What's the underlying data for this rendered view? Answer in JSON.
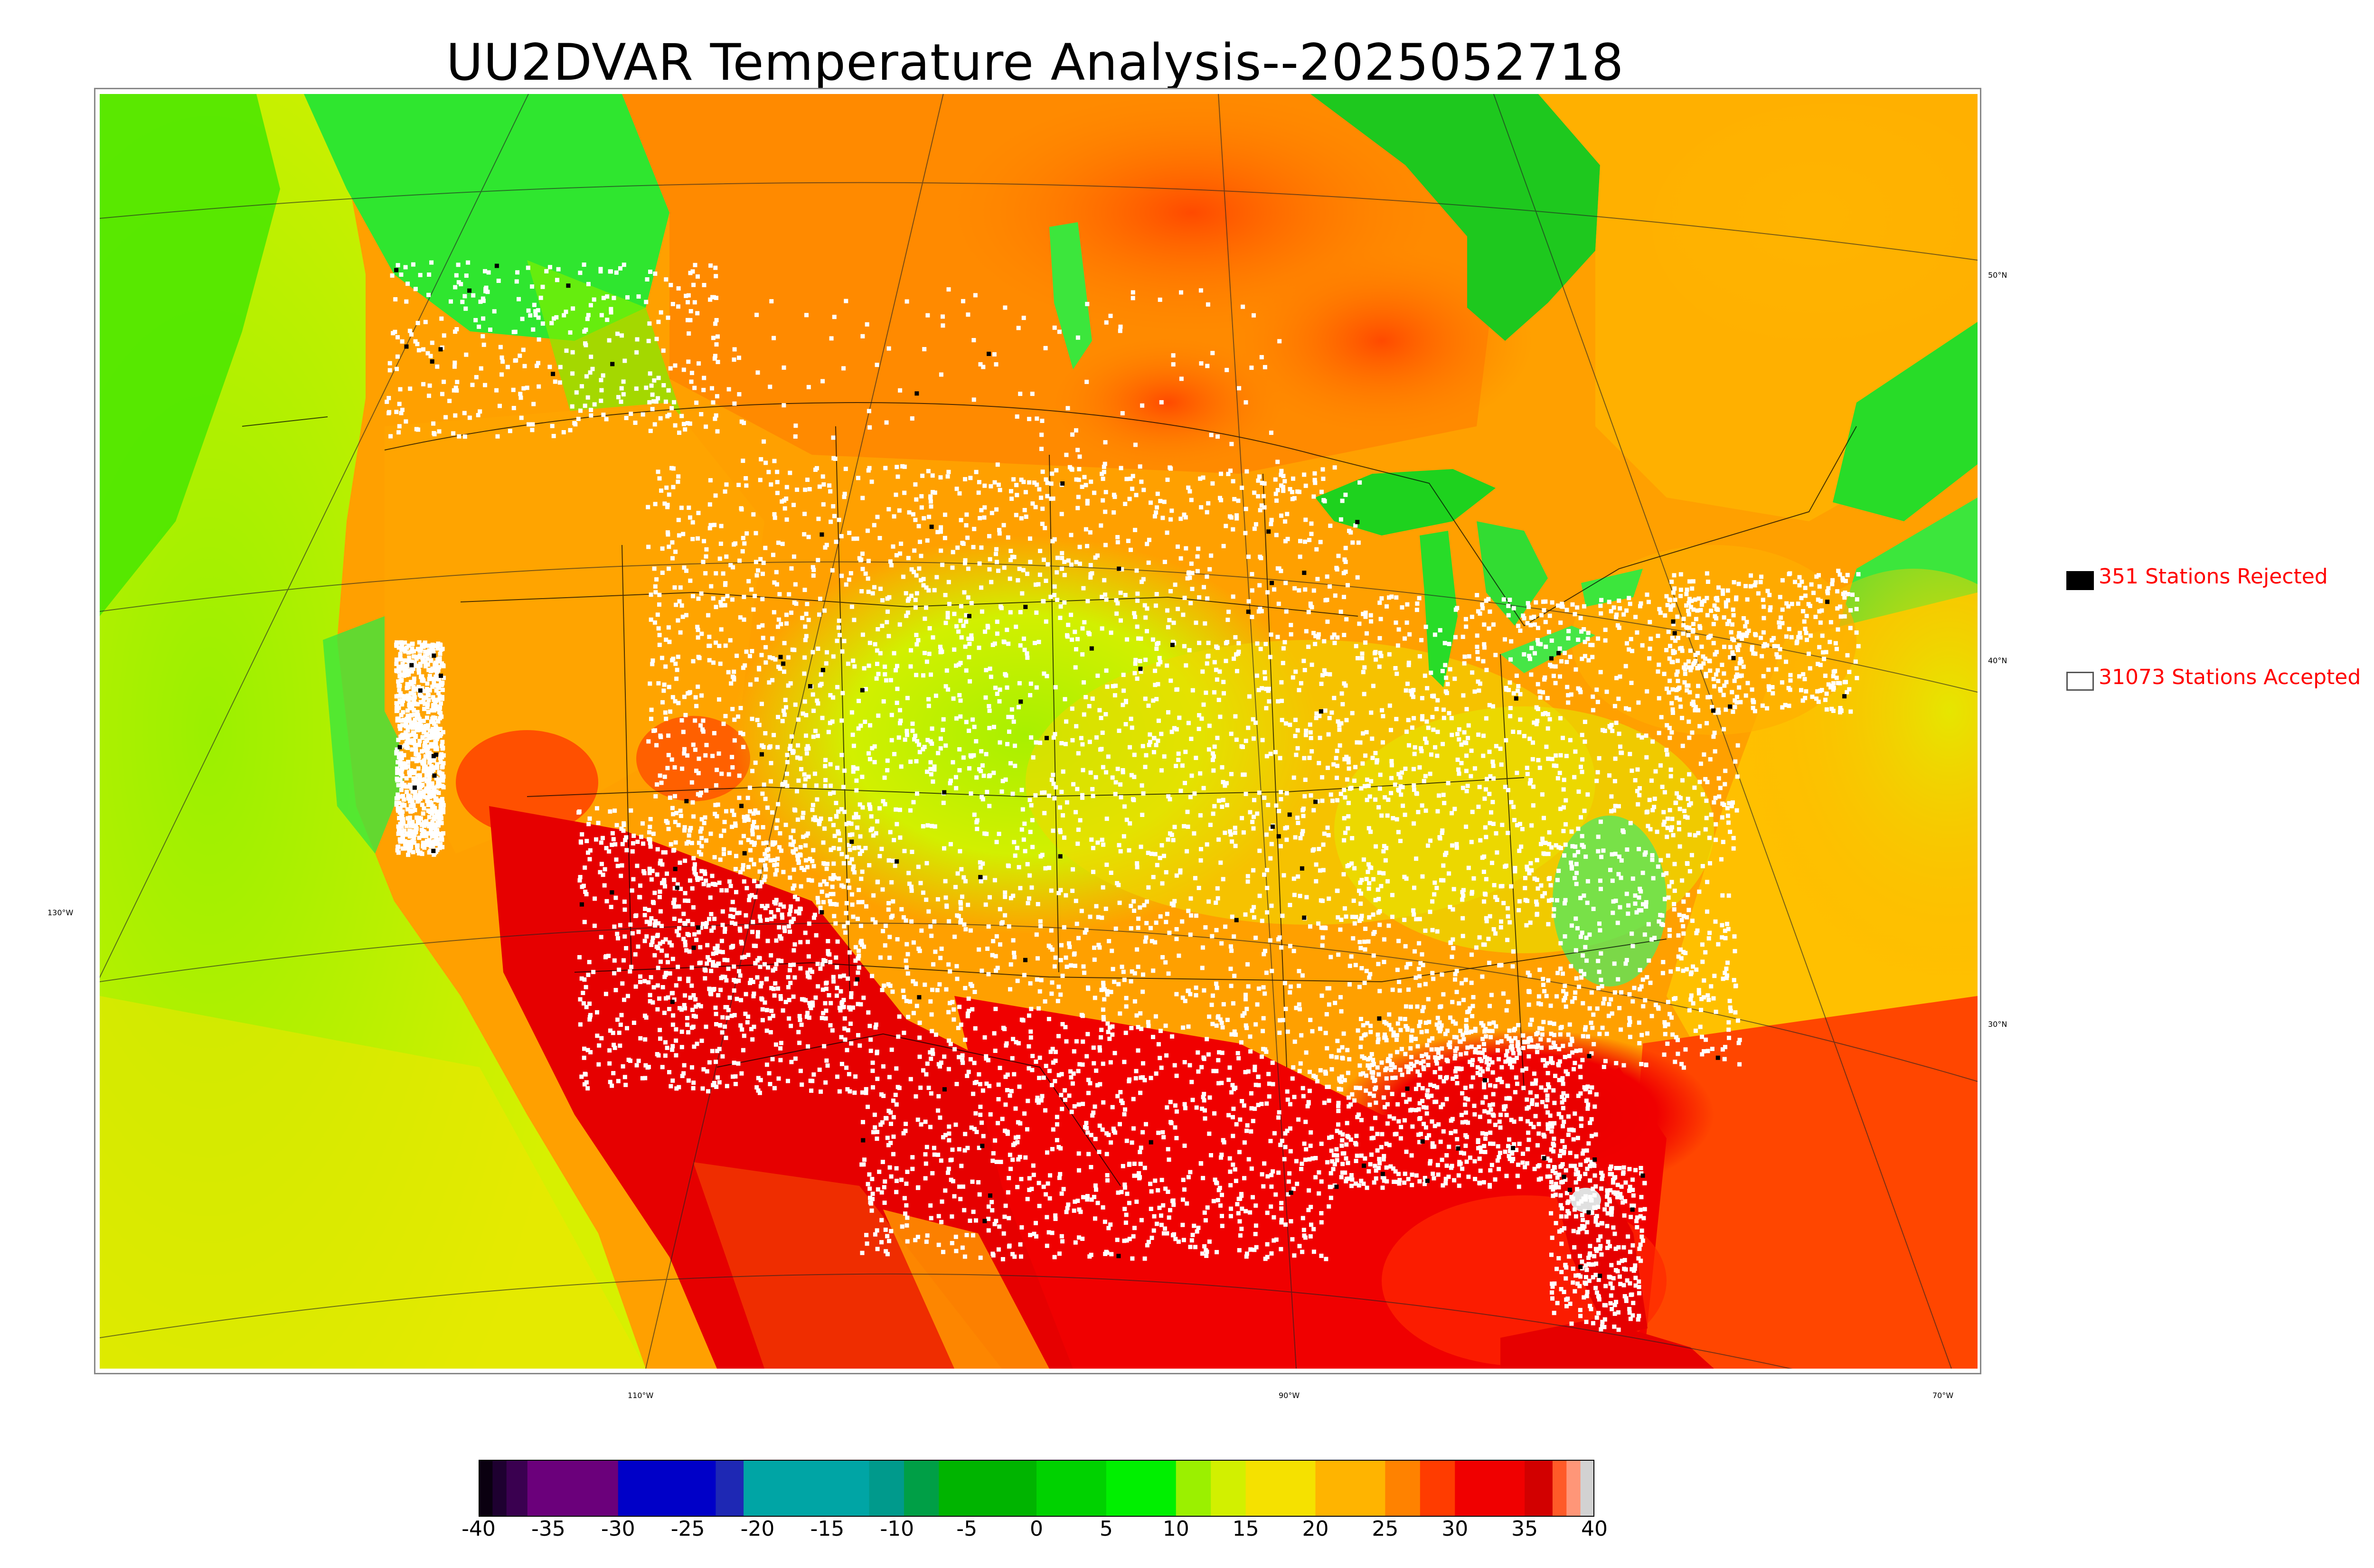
{
  "title": "UU2DVAR Temperature Analysis--2025052718",
  "map": {
    "lon_labels": [
      "130°W",
      "110°W",
      "90°W",
      "70°W"
    ],
    "lat_labels": [
      "50°N",
      "40°N",
      "30°N"
    ]
  },
  "legend": {
    "rejected": {
      "label": "351 Stations Rejected",
      "color": "#000000"
    },
    "accepted": {
      "label": "31073 Stations Accepted",
      "color": "#ffffff"
    }
  },
  "colorbar": {
    "ticks": [
      "-40",
      "-35",
      "-30",
      "-25",
      "-20",
      "-15",
      "-10",
      "-5",
      "0",
      "5",
      "10",
      "15",
      "20",
      "25",
      "30",
      "35",
      "40"
    ],
    "segments": [
      {
        "from": -40,
        "to": -39,
        "color": "#0a0010"
      },
      {
        "from": -39,
        "to": -38,
        "color": "#1e0030"
      },
      {
        "from": -38,
        "to": -36.5,
        "color": "#3a0050"
      },
      {
        "from": -36.5,
        "to": -30,
        "color": "#6b007b"
      },
      {
        "from": -30,
        "to": -23,
        "color": "#0000c8"
      },
      {
        "from": -23,
        "to": -21,
        "color": "#1e28b4"
      },
      {
        "from": -21,
        "to": -12,
        "color": "#00a5a5"
      },
      {
        "from": -12,
        "to": -9.5,
        "color": "#009a8c"
      },
      {
        "from": -9.5,
        "to": -7,
        "color": "#009f46"
      },
      {
        "from": -7,
        "to": 0,
        "color": "#00b400"
      },
      {
        "from": 0,
        "to": 5,
        "color": "#00d200"
      },
      {
        "from": 5,
        "to": 10,
        "color": "#00f000"
      },
      {
        "from": 10,
        "to": 12.5,
        "color": "#9bf000"
      },
      {
        "from": 12.5,
        "to": 15,
        "color": "#d2f000"
      },
      {
        "from": 15,
        "to": 20,
        "color": "#f5e100"
      },
      {
        "from": 20,
        "to": 25,
        "color": "#ffb400"
      },
      {
        "from": 25,
        "to": 27.5,
        "color": "#ff8200"
      },
      {
        "from": 27.5,
        "to": 30,
        "color": "#ff3c00"
      },
      {
        "from": 30,
        "to": 35,
        "color": "#f00000"
      },
      {
        "from": 35,
        "to": 37,
        "color": "#d20000"
      },
      {
        "from": 37,
        "to": 38,
        "color": "#ff5a28"
      },
      {
        "from": 38,
        "to": 39,
        "color": "#ff9678"
      },
      {
        "from": 39,
        "to": 40,
        "color": "#d2d2d2"
      }
    ]
  }
}
